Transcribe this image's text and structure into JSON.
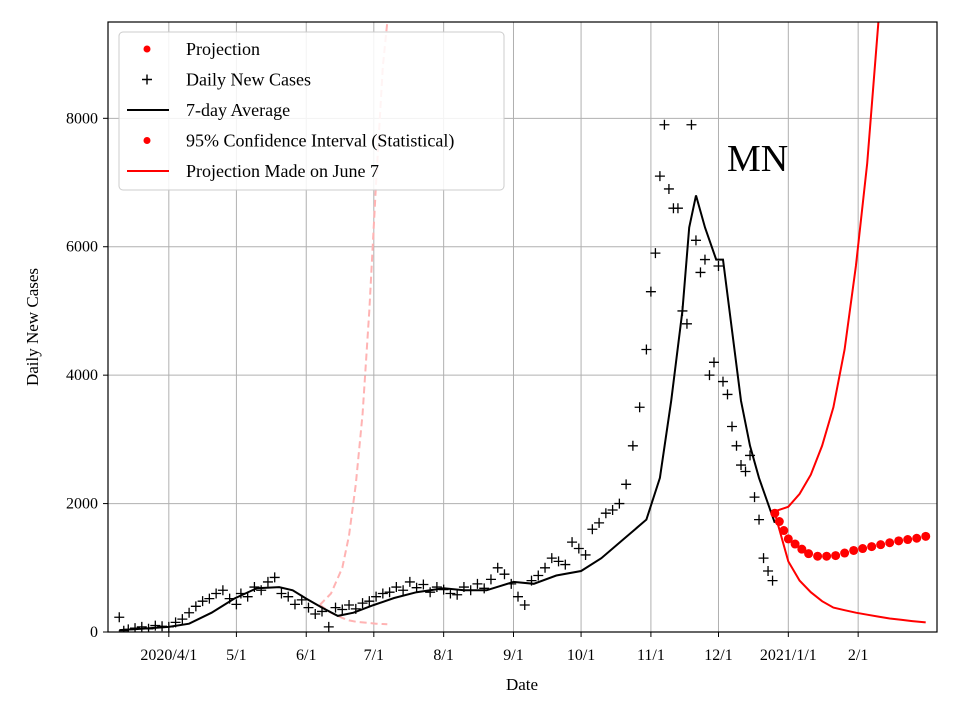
{
  "chart_data": {
    "type": "line",
    "state_label": "MN",
    "xlabel": "Date",
    "ylabel": "Daily New Cases",
    "x_axis": {
      "type": "date",
      "range": [
        "2020-03-05",
        "2021-03-08"
      ],
      "ticks": [
        {
          "date": "2020-04-01",
          "label": "2020/4/1"
        },
        {
          "date": "2020-05-01",
          "label": "5/1"
        },
        {
          "date": "2020-06-01",
          "label": "6/1"
        },
        {
          "date": "2020-07-01",
          "label": "7/1"
        },
        {
          "date": "2020-08-01",
          "label": "8/1"
        },
        {
          "date": "2020-09-01",
          "label": "9/1"
        },
        {
          "date": "2020-10-01",
          "label": "10/1"
        },
        {
          "date": "2020-11-01",
          "label": "11/1"
        },
        {
          "date": "2020-12-01",
          "label": "12/1"
        },
        {
          "date": "2021-01-01",
          "label": "2021/1/1"
        },
        {
          "date": "2021-02-01",
          "label": "2/1"
        }
      ]
    },
    "y_axis": {
      "range": [
        0,
        9500
      ],
      "ticks": [
        {
          "value": 0,
          "label": "0"
        },
        {
          "value": 2000,
          "label": "2000"
        },
        {
          "value": 4000,
          "label": "4000"
        },
        {
          "value": 6000,
          "label": "6000"
        },
        {
          "value": 8000,
          "label": "8000"
        }
      ]
    },
    "grid": true,
    "legend": {
      "placement": "top-left",
      "entries": [
        {
          "label": "Projection",
          "marker": "dot",
          "color": "#ff0000"
        },
        {
          "label": "Daily New Cases",
          "marker": "plus",
          "color": "#000000"
        },
        {
          "label": "7-day Average",
          "marker": "line",
          "color": "#000000"
        },
        {
          "label": "95% Confidence Interval (Statistical)",
          "marker": "dot",
          "color": "#ff0000"
        },
        {
          "label": "Projection Made on June 7",
          "marker": "line",
          "color": "#ff0000"
        }
      ]
    },
    "colors": {
      "daily": "#000000",
      "average": "#000000",
      "projection": "#ff0000",
      "ci": "#ff0000",
      "june7": "#ffb3b3",
      "grid": "#b0b0b0"
    },
    "series": [
      {
        "name": "Daily New Cases",
        "style": "markers-plus",
        "x": [
          "2020-03-10",
          "2020-03-12",
          "2020-03-14",
          "2020-03-17",
          "2020-03-20",
          "2020-03-23",
          "2020-03-26",
          "2020-03-29",
          "2020-04-01",
          "2020-04-04",
          "2020-04-07",
          "2020-04-10",
          "2020-04-13",
          "2020-04-16",
          "2020-04-19",
          "2020-04-22",
          "2020-04-25",
          "2020-04-28",
          "2020-05-01",
          "2020-05-03",
          "2020-05-06",
          "2020-05-09",
          "2020-05-12",
          "2020-05-15",
          "2020-05-18",
          "2020-05-21",
          "2020-05-24",
          "2020-05-27",
          "2020-05-30",
          "2020-06-02",
          "2020-06-05",
          "2020-06-08",
          "2020-06-11",
          "2020-06-14",
          "2020-06-17",
          "2020-06-20",
          "2020-06-23",
          "2020-06-26",
          "2020-06-29",
          "2020-07-02",
          "2020-07-05",
          "2020-07-08",
          "2020-07-11",
          "2020-07-14",
          "2020-07-17",
          "2020-07-20",
          "2020-07-23",
          "2020-07-26",
          "2020-07-29",
          "2020-08-01",
          "2020-08-04",
          "2020-08-07",
          "2020-08-10",
          "2020-08-13",
          "2020-08-16",
          "2020-08-19",
          "2020-08-22",
          "2020-08-25",
          "2020-08-28",
          "2020-08-31",
          "2020-09-03",
          "2020-09-06",
          "2020-09-09",
          "2020-09-12",
          "2020-09-15",
          "2020-09-18",
          "2020-09-21",
          "2020-09-24",
          "2020-09-27",
          "2020-09-30",
          "2020-10-03",
          "2020-10-06",
          "2020-10-09",
          "2020-10-12",
          "2020-10-15",
          "2020-10-18",
          "2020-10-21",
          "2020-10-24",
          "2020-10-27",
          "2020-10-30",
          "2020-11-01",
          "2020-11-03",
          "2020-11-05",
          "2020-11-07",
          "2020-11-09",
          "2020-11-11",
          "2020-11-13",
          "2020-11-15",
          "2020-11-17",
          "2020-11-19",
          "2020-11-21",
          "2020-11-23",
          "2020-11-25",
          "2020-11-27",
          "2020-11-29",
          "2020-12-01",
          "2020-12-03",
          "2020-12-05",
          "2020-12-07",
          "2020-12-09",
          "2020-12-11",
          "2020-12-13",
          "2020-12-15",
          "2020-12-17",
          "2020-12-19",
          "2020-12-21",
          "2020-12-23",
          "2020-12-25"
        ],
        "values": [
          230,
          20,
          40,
          60,
          80,
          50,
          100,
          90,
          80,
          150,
          200,
          300,
          400,
          480,
          520,
          600,
          650,
          520,
          430,
          600,
          550,
          700,
          650,
          780,
          850,
          600,
          550,
          430,
          500,
          380,
          280,
          320,
          80,
          380,
          350,
          420,
          360,
          450,
          480,
          550,
          600,
          620,
          700,
          650,
          780,
          690,
          740,
          620,
          700,
          660,
          600,
          580,
          700,
          650,
          750,
          680,
          820,
          1000,
          900,
          750,
          550,
          420,
          800,
          880,
          1000,
          1150,
          1100,
          1050,
          1400,
          1300,
          1200,
          1600,
          1700,
          1850,
          1900,
          2000,
          2300,
          2900,
          3500,
          4400,
          5300,
          5900,
          7100,
          7900,
          6900,
          6600,
          6600,
          5000,
          4800,
          7900,
          6100,
          5600,
          5800,
          4000,
          4200,
          5700,
          3900,
          3700,
          3200,
          2900,
          2600,
          2500,
          2750,
          2100,
          1750,
          1150,
          950,
          800
        ]
      },
      {
        "name": "7-day Average",
        "style": "line",
        "x": [
          "2020-03-10",
          "2020-03-20",
          "2020-04-01",
          "2020-04-10",
          "2020-04-20",
          "2020-04-30",
          "2020-05-10",
          "2020-05-20",
          "2020-05-26",
          "2020-06-01",
          "2020-06-08",
          "2020-06-15",
          "2020-06-22",
          "2020-07-01",
          "2020-07-10",
          "2020-07-20",
          "2020-08-01",
          "2020-08-10",
          "2020-08-20",
          "2020-09-01",
          "2020-09-10",
          "2020-09-20",
          "2020-10-01",
          "2020-10-10",
          "2020-10-20",
          "2020-10-30",
          "2020-11-05",
          "2020-11-10",
          "2020-11-15",
          "2020-11-18",
          "2020-11-21",
          "2020-11-25",
          "2020-11-30",
          "2020-12-03",
          "2020-12-07",
          "2020-12-11",
          "2020-12-15",
          "2020-12-19",
          "2020-12-23",
          "2020-12-26"
        ],
        "values": [
          30,
          50,
          80,
          130,
          300,
          520,
          680,
          700,
          650,
          520,
          380,
          250,
          300,
          420,
          530,
          620,
          680,
          650,
          650,
          780,
          750,
          880,
          950,
          1150,
          1450,
          1750,
          2400,
          3600,
          5000,
          6300,
          6800,
          6300,
          5800,
          5800,
          4700,
          3600,
          2900,
          2400,
          2000,
          1700
        ]
      }
    ],
    "projection": {
      "name": "Projection",
      "style": "dots",
      "x": [
        "2020-12-26",
        "2020-12-28",
        "2020-12-30",
        "2021-01-01",
        "2021-01-04",
        "2021-01-07",
        "2021-01-10",
        "2021-01-14",
        "2021-01-18",
        "2021-01-22",
        "2021-01-26",
        "2021-01-30",
        "2021-02-03",
        "2021-02-07",
        "2021-02-11",
        "2021-02-15",
        "2021-02-19",
        "2021-02-23",
        "2021-02-27",
        "2021-03-03"
      ],
      "values": [
        1850,
        1720,
        1580,
        1450,
        1370,
        1290,
        1220,
        1180,
        1180,
        1190,
        1230,
        1270,
        1300,
        1330,
        1360,
        1390,
        1420,
        1440,
        1460,
        1490
      ]
    },
    "confidence_interval": {
      "name": "95% Confidence Interval (Statistical)",
      "x": [
        "2020-12-26",
        "2021-01-01",
        "2021-01-06",
        "2021-01-11",
        "2021-01-16",
        "2021-01-21",
        "2021-01-26",
        "2021-01-31",
        "2021-02-05",
        "2021-02-10",
        "2021-02-15",
        "2021-02-20",
        "2021-02-25",
        "2021-03-03"
      ],
      "upper": [
        1880,
        1950,
        2150,
        2450,
        2900,
        3500,
        4400,
        5700,
        7300,
        9500,
        null,
        null,
        null,
        null
      ],
      "lower": [
        1850,
        1100,
        800,
        620,
        480,
        380,
        340,
        300,
        270,
        240,
        210,
        190,
        170,
        150
      ]
    },
    "june7_projection": {
      "name": "Projection Made on June 7",
      "x": [
        "2020-06-07",
        "2020-06-12",
        "2020-06-17",
        "2020-06-20",
        "2020-06-23",
        "2020-06-26",
        "2020-06-29",
        "2020-07-02",
        "2020-07-05",
        "2020-07-07"
      ],
      "upper": [
        420,
        600,
        1000,
        1500,
        2300,
        3400,
        5000,
        7000,
        8800,
        9500
      ],
      "lower": [
        420,
        300,
        220,
        180,
        160,
        150,
        140,
        130,
        125,
        120
      ]
    }
  }
}
